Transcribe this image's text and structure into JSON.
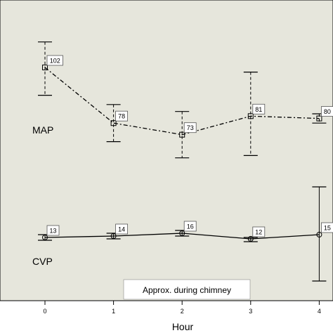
{
  "chart_data": {
    "type": "line",
    "xlabel": "Hour",
    "x": [
      0,
      1,
      2,
      3,
      4
    ],
    "tick_labels": [
      "0",
      "1",
      "2",
      "3",
      "4"
    ],
    "plot_background": "#e6e6dc",
    "line_color": "#000000",
    "y_axis_visible": false,
    "grid": false,
    "series": [
      {
        "name": "MAP",
        "line_style": "dash-dot",
        "marker": "square",
        "values": [
          102,
          78,
          73,
          81,
          80
        ],
        "data_labels": [
          "102",
          "78",
          "73",
          "81",
          "80"
        ],
        "error_upper": [
          113,
          86,
          83,
          100,
          82
        ],
        "error_lower": [
          90,
          70,
          63,
          64,
          78
        ]
      },
      {
        "name": "CVP",
        "line_style": "solid",
        "marker": "circle",
        "values": [
          13,
          14,
          16,
          12,
          15
        ],
        "data_labels": [
          "13",
          "14",
          "16",
          "12",
          "15"
        ],
        "error_upper": [
          15,
          16,
          18,
          13,
          49
        ],
        "error_lower": [
          11,
          12,
          14,
          10,
          -18
        ]
      }
    ],
    "annotation": "Approx. during chimney"
  }
}
